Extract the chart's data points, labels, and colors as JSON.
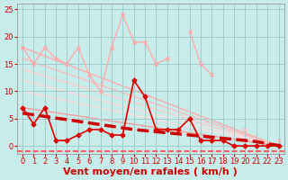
{
  "background_color": "#c8ecea",
  "grid_color": "#a0ccca",
  "xlim": [
    -0.5,
    23.5
  ],
  "ylim": [
    -1.5,
    26
  ],
  "xticks": [
    0,
    1,
    2,
    3,
    4,
    5,
    6,
    7,
    8,
    9,
    10,
    11,
    12,
    13,
    14,
    15,
    16,
    17,
    18,
    19,
    20,
    21,
    22,
    23
  ],
  "yticks": [
    0,
    5,
    10,
    15,
    20,
    25
  ],
  "xlabel": "Vent moyen/en rafales ( km/h )",
  "xlabel_color": "#cc0000",
  "xlabel_fontsize": 8,
  "tick_fontsize": 6,
  "tick_color": "#cc0000",
  "series": [
    {
      "x": [
        0,
        1,
        2,
        3,
        4,
        5,
        6,
        7,
        8,
        9,
        10,
        11,
        12,
        13,
        14,
        15,
        16,
        17,
        18,
        19,
        20,
        21,
        22,
        23
      ],
      "y": [
        18,
        15,
        18,
        16,
        15,
        18,
        13,
        10,
        18,
        24,
        19,
        19,
        15,
        16,
        null,
        null,
        null,
        null,
        null,
        null,
        null,
        null,
        null,
        null
      ],
      "color": "#ffaaaa",
      "linewidth": 1.0,
      "marker": "x",
      "markersize": 3,
      "zorder": 2
    },
    {
      "x": [
        14,
        15,
        16,
        17,
        18,
        19,
        20,
        21,
        22,
        23
      ],
      "y": [
        null,
        21,
        15,
        13,
        null,
        null,
        null,
        null,
        null,
        null
      ],
      "color": "#ffaaaa",
      "linewidth": 1.0,
      "marker": "x",
      "markersize": 3,
      "zorder": 2
    },
    {
      "x": [
        13,
        14,
        15,
        16,
        17,
        18,
        19,
        20,
        21,
        22,
        23
      ],
      "y": [
        null,
        null,
        null,
        null,
        null,
        null,
        null,
        3,
        null,
        null,
        1
      ],
      "color": "#ffbbbb",
      "linewidth": 1.0,
      "marker": "x",
      "markersize": 3,
      "zorder": 2
    },
    {
      "x": [
        0,
        23
      ],
      "y": [
        18,
        0
      ],
      "color": "#ffaaaa",
      "linewidth": 1.0,
      "marker": null,
      "markersize": 0,
      "zorder": 1
    },
    {
      "x": [
        0,
        23
      ],
      "y": [
        16,
        0
      ],
      "color": "#ffbbbb",
      "linewidth": 1.0,
      "marker": null,
      "markersize": 0,
      "zorder": 1
    },
    {
      "x": [
        0,
        23
      ],
      "y": [
        14,
        0
      ],
      "color": "#ffcccc",
      "linewidth": 1.0,
      "marker": null,
      "markersize": 0,
      "zorder": 1
    },
    {
      "x": [
        0,
        23
      ],
      "y": [
        12,
        0
      ],
      "color": "#ffdddd",
      "linewidth": 1.0,
      "marker": null,
      "markersize": 0,
      "zorder": 1
    },
    {
      "x": [
        0,
        23
      ],
      "y": [
        10,
        0
      ],
      "color": "#ffdddd",
      "linewidth": 1.0,
      "marker": null,
      "markersize": 0,
      "zorder": 1
    },
    {
      "x": [
        0,
        23
      ],
      "y": [
        7,
        0
      ],
      "color": "#ff9999",
      "linewidth": 1.0,
      "marker": null,
      "markersize": 0,
      "zorder": 1
    },
    {
      "x": [
        0,
        1,
        2,
        3,
        4,
        5,
        6,
        7,
        8,
        9,
        10,
        11,
        12,
        13,
        14,
        15,
        16,
        17,
        18,
        19,
        20,
        21,
        22,
        23
      ],
      "y": [
        7,
        4,
        7,
        1,
        1,
        2,
        3,
        3,
        2,
        2,
        12,
        9,
        3,
        3,
        3,
        5,
        1,
        1,
        1,
        0,
        0,
        0,
        0,
        0
      ],
      "color": "#dd0000",
      "linewidth": 1.2,
      "marker": "D",
      "markersize": 2.5,
      "zorder": 4
    },
    {
      "x": [
        0,
        1,
        2,
        3,
        4,
        5,
        6,
        7,
        8,
        9,
        10,
        11,
        12,
        13,
        14,
        15,
        16,
        17,
        18,
        19,
        20,
        21,
        22,
        23
      ],
      "y": [
        6,
        5.7,
        5.4,
        5.1,
        4.8,
        4.5,
        4.2,
        3.9,
        3.6,
        3.3,
        3.0,
        2.8,
        2.6,
        2.4,
        2.2,
        2.0,
        1.8,
        1.6,
        1.4,
        1.2,
        1.0,
        0.8,
        0.4,
        0.1
      ],
      "color": "#cc0000",
      "linewidth": 2.5,
      "marker": null,
      "markersize": 0,
      "zorder": 5,
      "linestyle": "--"
    }
  ],
  "bottom_dashes_y": -1.0,
  "bottom_dashes_color": "#ff4444"
}
